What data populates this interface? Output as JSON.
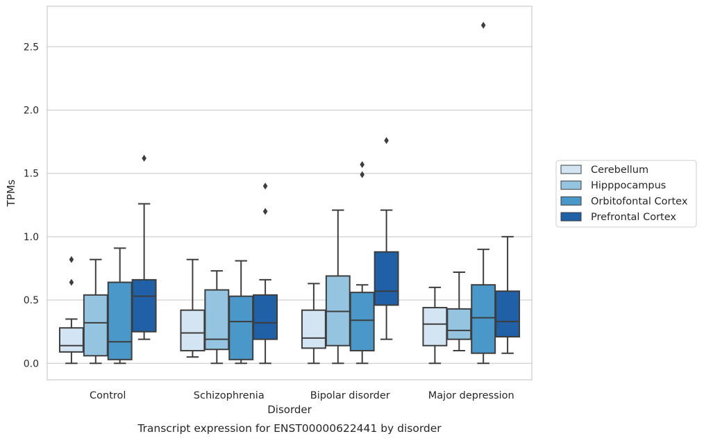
{
  "chart_data": {
    "type": "box",
    "caption": "Transcript expression for ENST00000622441 by disorder",
    "xlabel": "Disorder",
    "ylabel": "TPMs",
    "ylim": [
      -0.13,
      2.82
    ],
    "yticks": [
      0.0,
      0.5,
      1.0,
      1.5,
      2.0,
      2.5
    ],
    "ytick_labels": [
      "0.0",
      "0.5",
      "1.0",
      "1.5",
      "2.0",
      "2.5"
    ],
    "grid": "horizontal",
    "legend_position": "right",
    "categories": [
      "Control",
      "Schizophrenia",
      "Bipolar disorder",
      "Major depression"
    ],
    "series": [
      {
        "name": "Cerebellum",
        "color": "#d3e4f3",
        "boxes": [
          {
            "whisker_low": 0.0,
            "q1": 0.09,
            "median": 0.14,
            "q3": 0.28,
            "whisker_high": 0.35,
            "outliers": [
              0.64,
              0.82
            ]
          },
          {
            "whisker_low": 0.05,
            "q1": 0.1,
            "median": 0.24,
            "q3": 0.42,
            "whisker_high": 0.82,
            "outliers": []
          },
          {
            "whisker_low": 0.0,
            "q1": 0.12,
            "median": 0.2,
            "q3": 0.42,
            "whisker_high": 0.63,
            "outliers": []
          },
          {
            "whisker_low": 0.0,
            "q1": 0.14,
            "median": 0.31,
            "q3": 0.44,
            "whisker_high": 0.6,
            "outliers": []
          }
        ]
      },
      {
        "name": "Hipppocampus",
        "color": "#94c4df",
        "boxes": [
          {
            "whisker_low": 0.0,
            "q1": 0.06,
            "median": 0.32,
            "q3": 0.54,
            "whisker_high": 0.82,
            "outliers": []
          },
          {
            "whisker_low": 0.0,
            "q1": 0.11,
            "median": 0.19,
            "q3": 0.58,
            "whisker_high": 0.73,
            "outliers": []
          },
          {
            "whisker_low": 0.0,
            "q1": 0.14,
            "median": 0.41,
            "q3": 0.69,
            "whisker_high": 1.21,
            "outliers": []
          },
          {
            "whisker_low": 0.1,
            "q1": 0.19,
            "median": 0.26,
            "q3": 0.43,
            "whisker_high": 0.72,
            "outliers": []
          }
        ]
      },
      {
        "name": "Orbitofontal Cortex",
        "color": "#4a98c9",
        "boxes": [
          {
            "whisker_low": 0.0,
            "q1": 0.03,
            "median": 0.17,
            "q3": 0.64,
            "whisker_high": 0.91,
            "outliers": []
          },
          {
            "whisker_low": 0.0,
            "q1": 0.03,
            "median": 0.33,
            "q3": 0.53,
            "whisker_high": 0.81,
            "outliers": []
          },
          {
            "whisker_low": 0.0,
            "q1": 0.1,
            "median": 0.34,
            "q3": 0.56,
            "whisker_high": 0.62,
            "outliers": [
              1.49,
              1.57
            ]
          },
          {
            "whisker_low": 0.0,
            "q1": 0.08,
            "median": 0.36,
            "q3": 0.62,
            "whisker_high": 0.9,
            "outliers": [
              2.67
            ]
          }
        ]
      },
      {
        "name": "Prefrontal Cortex",
        "color": "#2060a7",
        "boxes": [
          {
            "whisker_low": 0.19,
            "q1": 0.25,
            "median": 0.53,
            "q3": 0.66,
            "whisker_high": 1.26,
            "outliers": [
              1.62
            ]
          },
          {
            "whisker_low": 0.0,
            "q1": 0.19,
            "median": 0.32,
            "q3": 0.54,
            "whisker_high": 0.66,
            "outliers": [
              1.2,
              1.4
            ]
          },
          {
            "whisker_low": 0.19,
            "q1": 0.46,
            "median": 0.57,
            "q3": 0.88,
            "whisker_high": 1.21,
            "outliers": [
              1.76
            ]
          },
          {
            "whisker_low": 0.08,
            "q1": 0.21,
            "median": 0.33,
            "q3": 0.57,
            "whisker_high": 1.0,
            "outliers": []
          }
        ]
      }
    ]
  }
}
